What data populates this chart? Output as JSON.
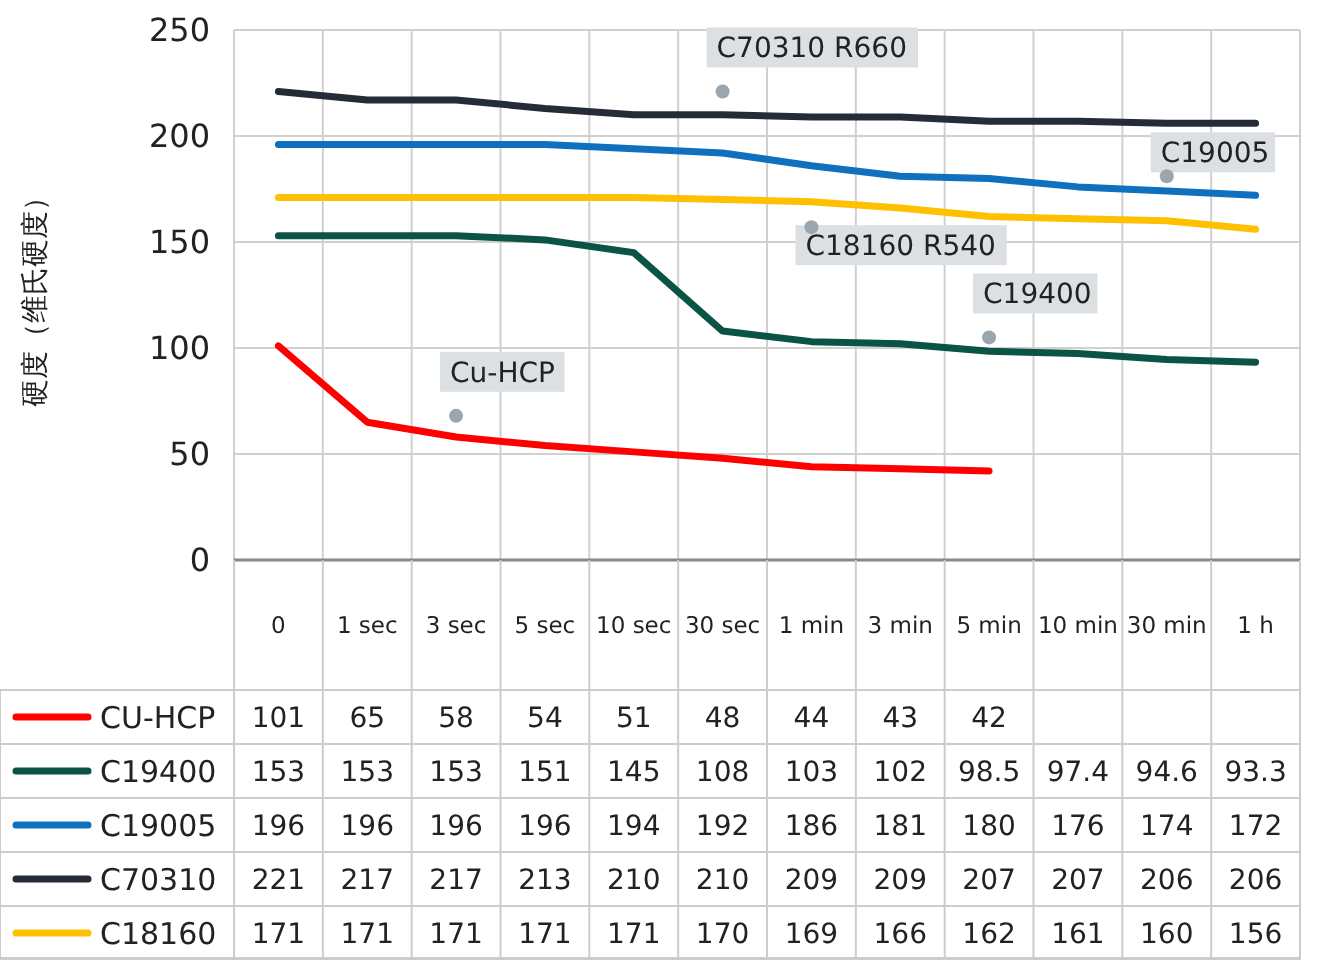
{
  "chart_data": {
    "type": "line",
    "ylabel": "硬度（维氏硬度）",
    "categories": [
      "0",
      "1 sec",
      "3 sec",
      "5 sec",
      "10 sec",
      "30 sec",
      "1 min",
      "3 min",
      "5 min",
      "10 min",
      "30 min",
      "1 h"
    ],
    "series": [
      {
        "name": "CU-HCP",
        "color": "#ff0000",
        "values": [
          101,
          65,
          58,
          54,
          51,
          48,
          44,
          43,
          42,
          null,
          null,
          null
        ]
      },
      {
        "name": "C19400",
        "color": "#0b5345",
        "values": [
          153,
          153,
          153,
          151,
          145,
          108,
          103,
          102,
          98.5,
          97.4,
          94.6,
          93.3
        ]
      },
      {
        "name": "C19005",
        "color": "#0f70c0",
        "values": [
          196,
          196,
          196,
          196,
          194,
          192,
          186,
          181,
          180,
          176,
          174,
          172
        ]
      },
      {
        "name": "C70310",
        "color": "#262c37",
        "values": [
          221,
          217,
          217,
          213,
          210,
          210,
          209,
          209,
          207,
          207,
          206,
          206
        ]
      },
      {
        "name": "C18160",
        "color": "#ffc000",
        "values": [
          171,
          171,
          171,
          171,
          171,
          170,
          169,
          166,
          162,
          161,
          160,
          156
        ]
      }
    ],
    "legend": "bottom",
    "ylim": [
      0,
      250
    ],
    "yticks": [
      0,
      50,
      100,
      150,
      200,
      250
    ],
    "grid": true,
    "data_labels": true,
    "marker": "none",
    "line_style": "solid",
    "annotations": [
      {
        "text": "C70310 R660",
        "x": "30 sec",
        "y": 221
      },
      {
        "text": "C19005",
        "x": "30 min",
        "y": 181
      },
      {
        "text": "C18160 R540",
        "x": "1 min",
        "y": 157
      },
      {
        "text": "C19400",
        "x": "5 min",
        "y": 105
      },
      {
        "text": "Cu-HCP",
        "x": "3 sec",
        "y": 68
      }
    ]
  }
}
